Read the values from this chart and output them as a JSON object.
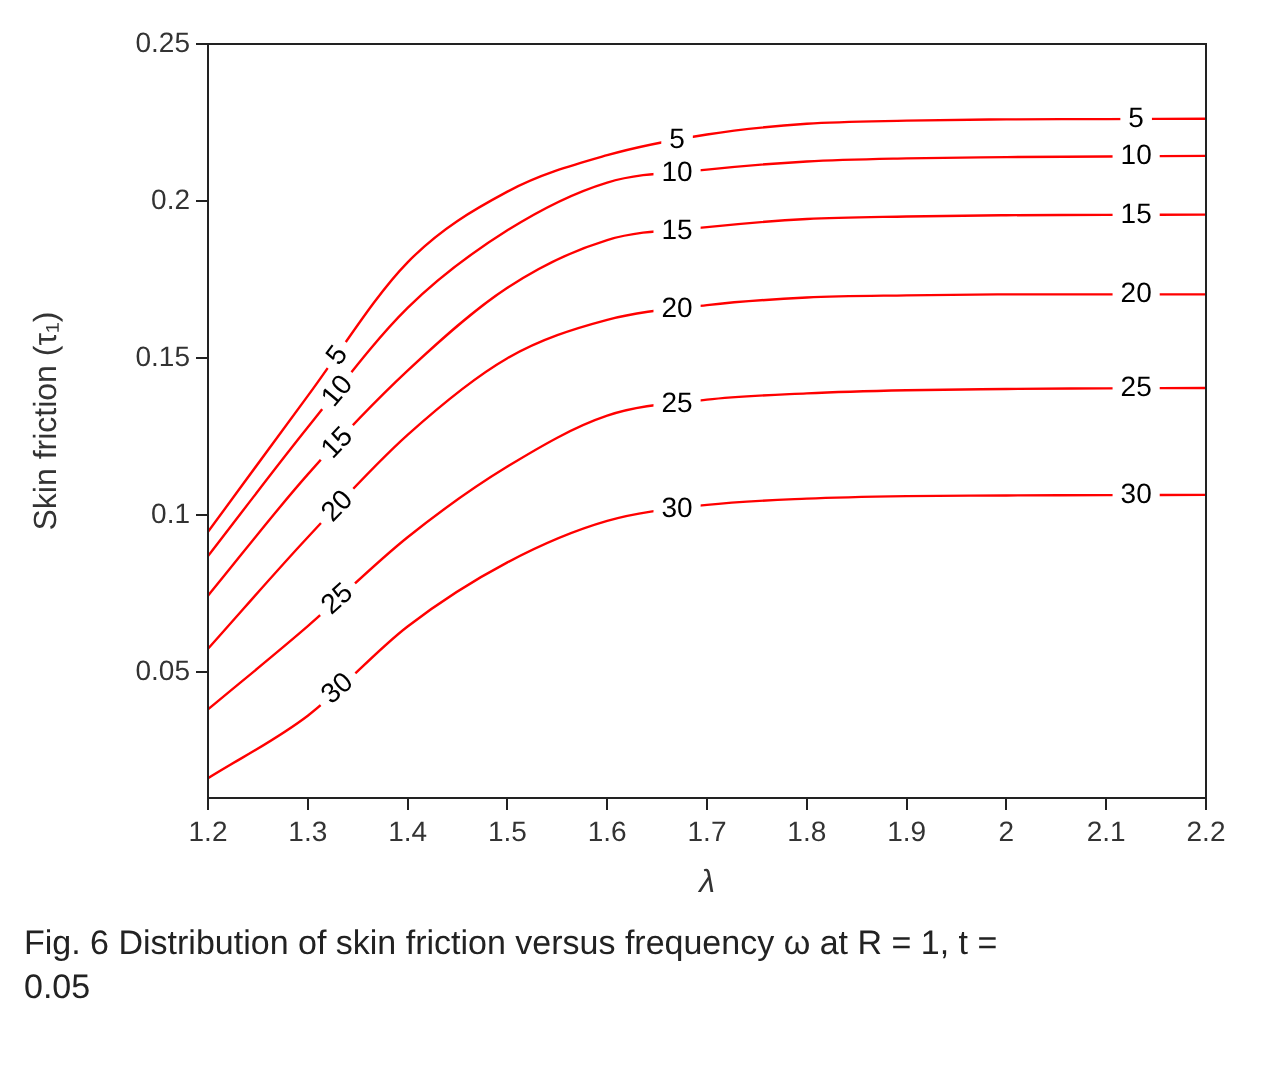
{
  "chart_data": {
    "type": "line",
    "xlabel": "λ",
    "ylabel": "Skin friction (τ₁)",
    "x": [
      1.2,
      1.3,
      1.4,
      1.5,
      1.6,
      1.7,
      1.8,
      1.9,
      2.0,
      2.1,
      2.2
    ],
    "series": [
      {
        "name": "5",
        "color": "#ff0000",
        "values": [
          0.0947,
          0.138,
          0.1805,
          0.203,
          0.2146,
          0.2212,
          0.2246,
          0.2256,
          0.226,
          0.2261,
          0.2262
        ]
      },
      {
        "name": "10",
        "color": "#ff0000",
        "values": [
          0.087,
          0.128,
          0.166,
          0.1907,
          0.2059,
          0.21,
          0.2126,
          0.2136,
          0.214,
          0.2142,
          0.2144
        ]
      },
      {
        "name": "15",
        "color": "#ff0000",
        "values": [
          0.0744,
          0.113,
          0.146,
          0.1724,
          0.1876,
          0.1917,
          0.1943,
          0.1951,
          0.1955,
          0.1956,
          0.1957
        ]
      },
      {
        "name": "20",
        "color": "#ff0000",
        "values": [
          0.0575,
          0.093,
          0.1256,
          0.15,
          0.1622,
          0.1669,
          0.1693,
          0.17,
          0.1703,
          0.1703,
          0.1703
        ]
      },
      {
        "name": "25",
        "color": "#ff0000",
        "values": [
          0.0382,
          0.0647,
          0.093,
          0.1155,
          0.1317,
          0.1368,
          0.1388,
          0.1398,
          0.1402,
          0.1404,
          0.1405
        ]
      },
      {
        "name": "30",
        "color": "#ff0000",
        "values": [
          0.0163,
          0.0362,
          0.0646,
          0.085,
          0.0982,
          0.1033,
          0.1053,
          0.1061,
          0.1063,
          0.1064,
          0.1065
        ]
      }
    ],
    "xlim": [
      1.2,
      2.2
    ],
    "xticks": [
      1.2,
      1.3,
      1.4,
      1.5,
      1.6,
      1.7,
      1.8,
      1.9,
      2,
      2.1,
      2.2
    ],
    "ylim": [
      0.01,
      0.25
    ],
    "yticks": [
      0.05,
      0.1,
      0.15,
      0.2,
      0.25
    ],
    "grid": false,
    "legend": false,
    "marker": "none",
    "line_style": "solid",
    "annotations": [
      "Fig. 6 Distribution of skin friction versus frequency ω at R = 1, t = 0.05"
    ]
  }
}
